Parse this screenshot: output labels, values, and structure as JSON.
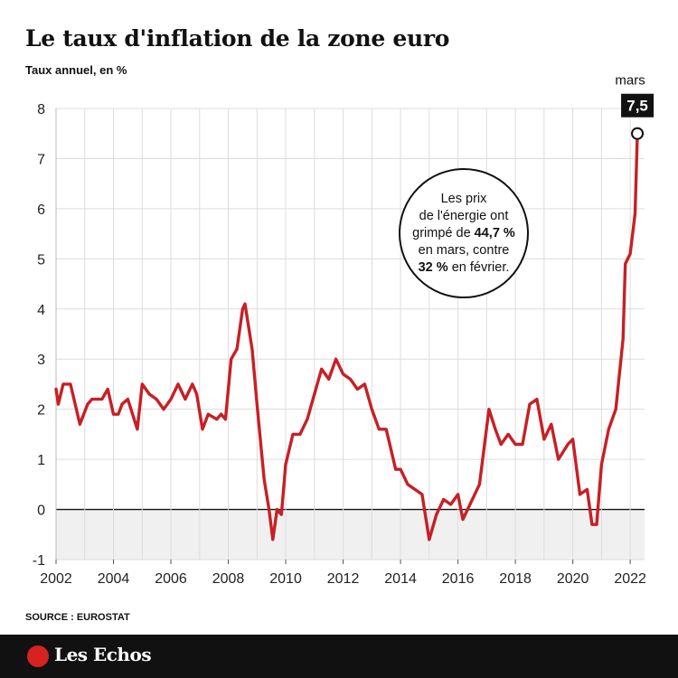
{
  "header": {
    "title": "Le taux d'inflation de la zone euro",
    "subtitle": "Taux annuel, en %"
  },
  "annotation": {
    "line1": "Les prix",
    "line2": "de l'énergie ont",
    "line3_pre": "grimpé de ",
    "line3_bold": "44,7 %",
    "line4": "en mars, contre",
    "line5_bold": "32 %",
    "line5_post": " en février."
  },
  "last_point": {
    "month_label": "mars",
    "value_label": "7,5"
  },
  "footer": {
    "source": "SOURCE : EUROSTAT",
    "brand": "Les Echos"
  },
  "colors": {
    "line": "#c62026",
    "negative_band": "#f0f0f0",
    "grid": "#dcdcdc",
    "footer_bg": "#111111",
    "brand_red": "#d72222"
  },
  "chart_data": {
    "type": "line",
    "series": [
      {
        "points": [
          [
            2002.0,
            2.4
          ],
          [
            2002.08,
            2.1
          ],
          [
            2002.25,
            2.5
          ],
          [
            2002.5,
            2.5
          ],
          [
            2002.83,
            1.7
          ],
          [
            2003.1,
            2.1
          ],
          [
            2003.25,
            2.2
          ],
          [
            2003.6,
            2.2
          ],
          [
            2003.8,
            2.4
          ],
          [
            2004.0,
            1.9
          ],
          [
            2004.17,
            1.9
          ],
          [
            2004.3,
            2.1
          ],
          [
            2004.5,
            2.2
          ],
          [
            2004.83,
            1.6
          ],
          [
            2005.0,
            2.5
          ],
          [
            2005.25,
            2.3
          ],
          [
            2005.5,
            2.2
          ],
          [
            2005.75,
            2.0
          ],
          [
            2006.0,
            2.2
          ],
          [
            2006.25,
            2.5
          ],
          [
            2006.5,
            2.2
          ],
          [
            2006.75,
            2.5
          ],
          [
            2006.9,
            2.3
          ],
          [
            2007.1,
            1.6
          ],
          [
            2007.3,
            1.9
          ],
          [
            2007.6,
            1.8
          ],
          [
            2007.75,
            1.9
          ],
          [
            2007.9,
            1.8
          ],
          [
            2008.1,
            3.0
          ],
          [
            2008.3,
            3.2
          ],
          [
            2008.5,
            4.0
          ],
          [
            2008.58,
            4.1
          ],
          [
            2008.83,
            3.2
          ],
          [
            2009.0,
            2.1
          ],
          [
            2009.25,
            0.6
          ],
          [
            2009.42,
            0.0
          ],
          [
            2009.55,
            -0.6
          ],
          [
            2009.7,
            0.0
          ],
          [
            2009.85,
            -0.1
          ],
          [
            2010.0,
            0.9
          ],
          [
            2010.25,
            1.5
          ],
          [
            2010.5,
            1.5
          ],
          [
            2010.75,
            1.8
          ],
          [
            2011.0,
            2.3
          ],
          [
            2011.25,
            2.8
          ],
          [
            2011.5,
            2.6
          ],
          [
            2011.75,
            3.0
          ],
          [
            2012.0,
            2.7
          ],
          [
            2012.25,
            2.6
          ],
          [
            2012.5,
            2.4
          ],
          [
            2012.75,
            2.5
          ],
          [
            2013.0,
            2.0
          ],
          [
            2013.25,
            1.6
          ],
          [
            2013.5,
            1.6
          ],
          [
            2013.83,
            0.8
          ],
          [
            2014.0,
            0.8
          ],
          [
            2014.25,
            0.5
          ],
          [
            2014.5,
            0.4
          ],
          [
            2014.75,
            0.3
          ],
          [
            2015.0,
            -0.6
          ],
          [
            2015.25,
            -0.1
          ],
          [
            2015.5,
            0.2
          ],
          [
            2015.75,
            0.1
          ],
          [
            2016.0,
            0.3
          ],
          [
            2016.17,
            -0.2
          ],
          [
            2016.5,
            0.2
          ],
          [
            2016.75,
            0.5
          ],
          [
            2017.08,
            2.0
          ],
          [
            2017.3,
            1.6
          ],
          [
            2017.5,
            1.3
          ],
          [
            2017.75,
            1.5
          ],
          [
            2018.0,
            1.3
          ],
          [
            2018.25,
            1.3
          ],
          [
            2018.5,
            2.1
          ],
          [
            2018.75,
            2.2
          ],
          [
            2019.0,
            1.4
          ],
          [
            2019.25,
            1.7
          ],
          [
            2019.5,
            1.0
          ],
          [
            2019.83,
            1.3
          ],
          [
            2020.0,
            1.4
          ],
          [
            2020.25,
            0.3
          ],
          [
            2020.5,
            0.4
          ],
          [
            2020.67,
            -0.3
          ],
          [
            2020.83,
            -0.3
          ],
          [
            2021.0,
            0.9
          ],
          [
            2021.25,
            1.6
          ],
          [
            2021.5,
            2.0
          ],
          [
            2021.75,
            3.4
          ],
          [
            2021.83,
            4.9
          ],
          [
            2022.0,
            5.1
          ],
          [
            2022.17,
            5.9
          ],
          [
            2022.25,
            7.5
          ]
        ]
      }
    ],
    "x_ticks": [
      "2002",
      "2004",
      "2006",
      "2008",
      "2010",
      "2012",
      "2014",
      "2016",
      "2018",
      "2020",
      "2022"
    ],
    "y_ticks": [
      "-1",
      "0",
      "1",
      "2",
      "3",
      "4",
      "5",
      "6",
      "7",
      "8"
    ],
    "xlim": [
      2002,
      2022.5
    ],
    "ylim": [
      -1,
      8
    ],
    "grid": true,
    "shaded_band": [
      -1,
      0
    ]
  }
}
